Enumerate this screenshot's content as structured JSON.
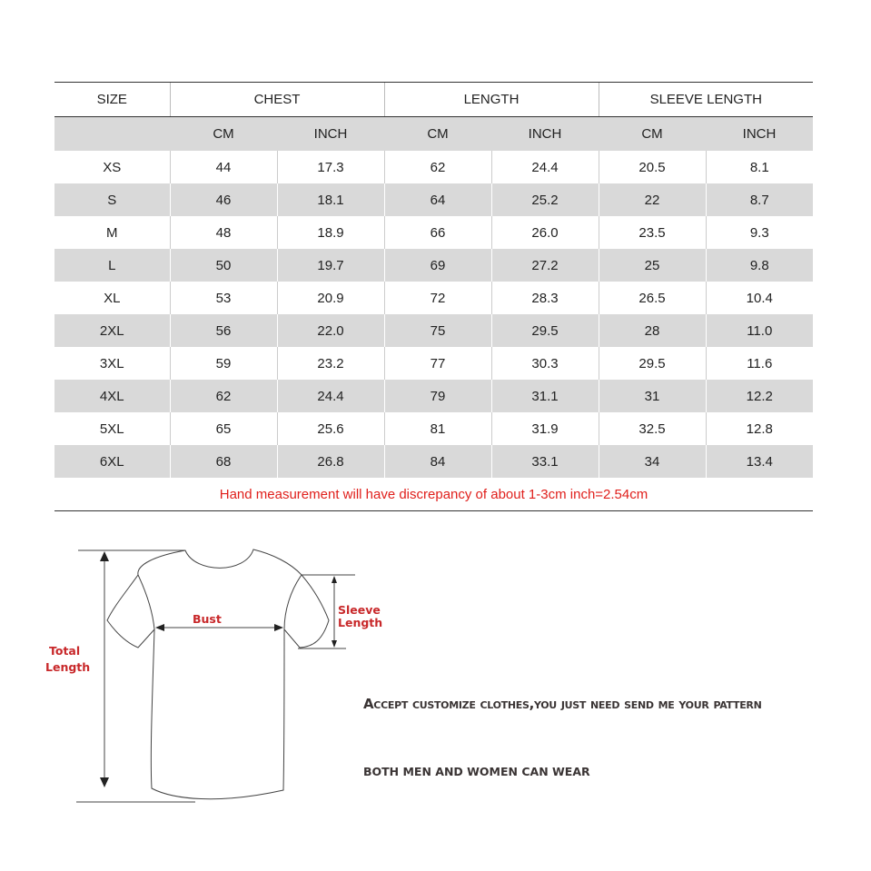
{
  "table": {
    "headers": [
      "SIZE",
      "CHEST",
      "LENGTH",
      "SLEEVE LENGTH"
    ],
    "subheaders": [
      "CM",
      "INCH",
      "CM",
      "INCH",
      "CM",
      "INCH"
    ],
    "rows": [
      [
        "XS",
        "44",
        "17.3",
        "62",
        "24.4",
        "20.5",
        "8.1"
      ],
      [
        "S",
        "46",
        "18.1",
        "64",
        "25.2",
        "22",
        "8.7"
      ],
      [
        "M",
        "48",
        "18.9",
        "66",
        "26.0",
        "23.5",
        "9.3"
      ],
      [
        "L",
        "50",
        "19.7",
        "69",
        "27.2",
        "25",
        "9.8"
      ],
      [
        "XL",
        "53",
        "20.9",
        "72",
        "28.3",
        "26.5",
        "10.4"
      ],
      [
        "2XL",
        "56",
        "22.0",
        "75",
        "29.5",
        "28",
        "11.0"
      ],
      [
        "3XL",
        "59",
        "23.2",
        "77",
        "30.3",
        "29.5",
        "11.6"
      ],
      [
        "4XL",
        "62",
        "24.4",
        "79",
        "31.1",
        "31",
        "12.2"
      ],
      [
        "5XL",
        "65",
        "25.6",
        "81",
        "31.9",
        "32.5",
        "12.8"
      ],
      [
        "6XL",
        "68",
        "26.8",
        "84",
        "33.1",
        "34",
        "13.4"
      ]
    ],
    "note": "Hand measurement will have discrepancy of about 1-3cm inch=2.54cm"
  },
  "diagram": {
    "bust": "Bust",
    "sleeve_line1": "Sleeve",
    "sleeve_line2": "Length",
    "total_line1": "Total",
    "total_line2": "Length"
  },
  "notes": {
    "customize": "Accept customize clothes,you just need send me your pattern",
    "unisex": "BOTH MEN AND WOMEN CAN WEAR"
  }
}
